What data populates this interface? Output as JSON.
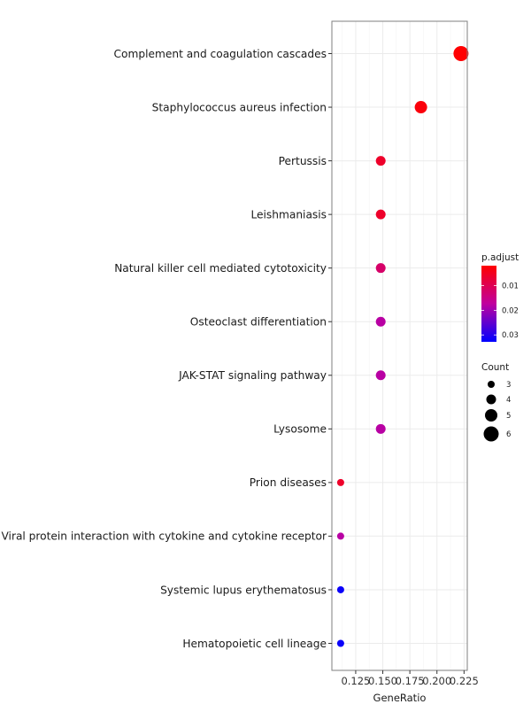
{
  "chart_data": {
    "type": "scatter",
    "subtype": "dot-plot",
    "xlabel": "GeneRatio",
    "ylabel": "",
    "xlim": [
      0.103,
      0.228
    ],
    "xticks": [
      0.125,
      0.15,
      0.175,
      0.2,
      0.225
    ],
    "xtick_labels": [
      "0.125",
      "0.150",
      "0.175",
      "0.200",
      "0.225"
    ],
    "grid": true,
    "legend_position": "right",
    "colors": {
      "low_padjust": "#ff0000",
      "high_padjust": "#0000ff",
      "grid": "#ebebeb",
      "panel_border": "#7f7f7f"
    },
    "color_legend": {
      "title": "p.adjust",
      "min": 0.0019,
      "max": 0.0328,
      "ticks": [
        0.01,
        0.02,
        0.03
      ],
      "tick_labels": [
        "0.01",
        "0.02",
        "0.03"
      ]
    },
    "size_legend": {
      "title": "Count",
      "values": [
        3,
        4,
        5,
        6
      ],
      "labels": [
        "3",
        "4",
        "5",
        "6"
      ]
    },
    "points": [
      {
        "term": "Complement and coagulation cascades",
        "gene_ratio": 0.2222,
        "count": 6,
        "p_adjust": 0.002
      },
      {
        "term": "Staphylococcus aureus infection",
        "gene_ratio": 0.1852,
        "count": 5,
        "p_adjust": 0.003
      },
      {
        "term": "Pertussis",
        "gene_ratio": 0.1481,
        "count": 4,
        "p_adjust": 0.006
      },
      {
        "term": "Leishmaniasis",
        "gene_ratio": 0.1481,
        "count": 4,
        "p_adjust": 0.006
      },
      {
        "term": "Natural killer cell mediated cytotoxicity",
        "gene_ratio": 0.1481,
        "count": 4,
        "p_adjust": 0.012
      },
      {
        "term": "Osteoclast differentiation",
        "gene_ratio": 0.1481,
        "count": 4,
        "p_adjust": 0.018
      },
      {
        "term": "JAK-STAT signaling pathway",
        "gene_ratio": 0.1481,
        "count": 4,
        "p_adjust": 0.018
      },
      {
        "term": "Lysosome",
        "gene_ratio": 0.1481,
        "count": 4,
        "p_adjust": 0.018
      },
      {
        "term": "Prion diseases",
        "gene_ratio": 0.1111,
        "count": 3,
        "p_adjust": 0.006
      },
      {
        "term": "Viral protein interaction with cytokine and cytokine receptor",
        "gene_ratio": 0.1111,
        "count": 3,
        "p_adjust": 0.018
      },
      {
        "term": "Systemic lupus erythematosus",
        "gene_ratio": 0.1111,
        "count": 3,
        "p_adjust": 0.032
      },
      {
        "term": "Hematopoietic cell lineage",
        "gene_ratio": 0.1111,
        "count": 3,
        "p_adjust": 0.032
      }
    ]
  }
}
